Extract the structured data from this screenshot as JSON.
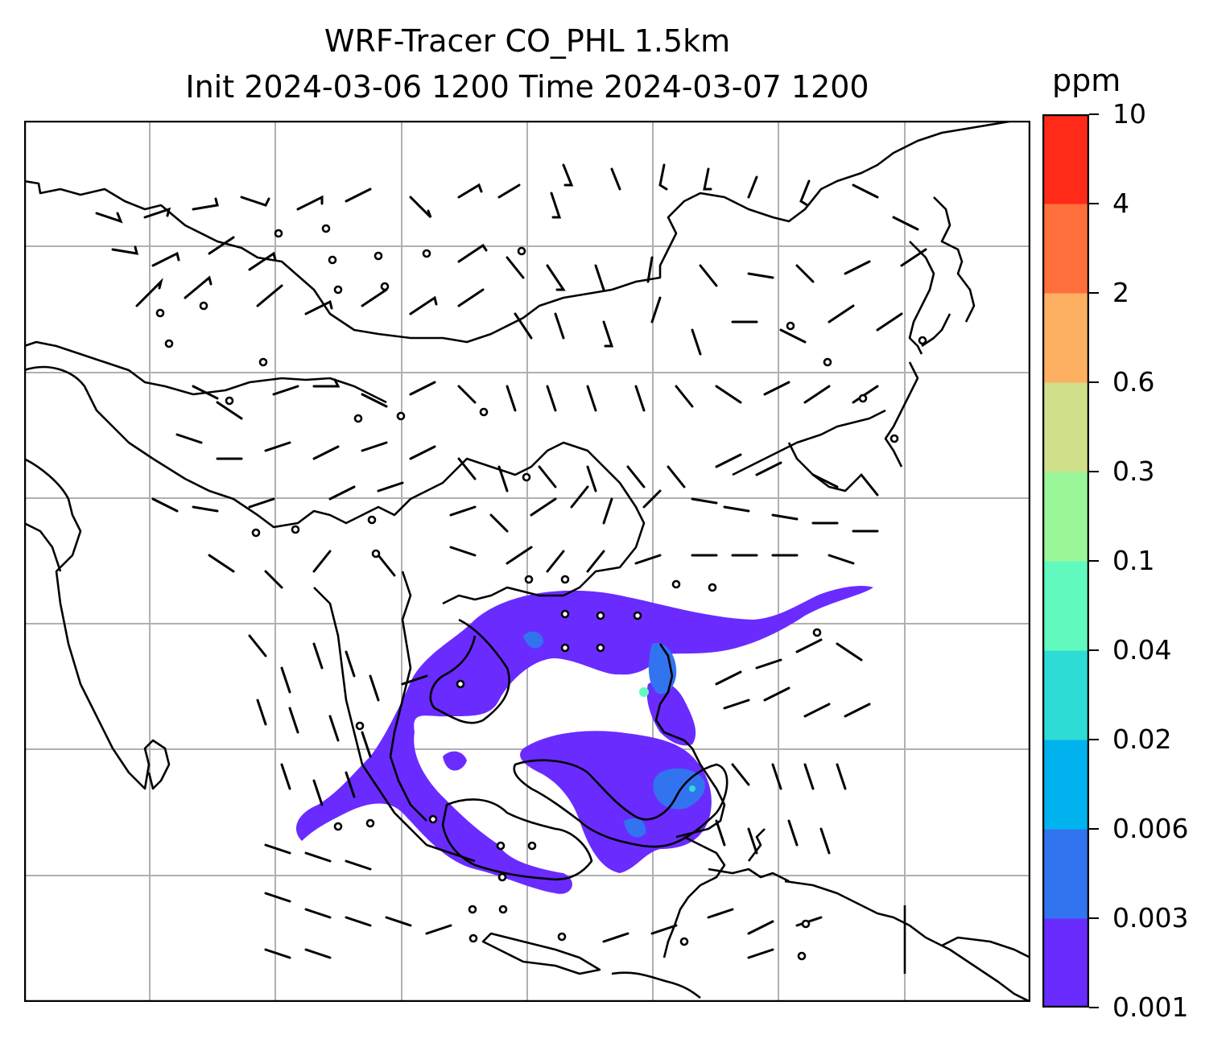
{
  "title_line1": "WRF-Tracer CO_PHL 1.5km",
  "title_line2": "Init 2024-03-06 1200 Time 2024-03-07 1200",
  "colorbar": {
    "unit": "ppm",
    "levels": [
      "0.001",
      "0.003",
      "0.006",
      "0.02",
      "0.04",
      "0.1",
      "0.3",
      "0.6",
      "2",
      "4",
      "10"
    ],
    "colors": [
      "#6a2bff",
      "#3273f0",
      "#00b3ee",
      "#2edcd6",
      "#62f9bf",
      "#99f79a",
      "#d0e08a",
      "#fdb062",
      "#ff6f3c",
      "#ff2a18"
    ]
  },
  "map": {
    "tracer": "CO_PHL",
    "plume_color": "#6a2bff",
    "plume_core_color": "#3273f0",
    "coastline_color": "#000000",
    "gridline_color": "#b0b0b0"
  }
}
